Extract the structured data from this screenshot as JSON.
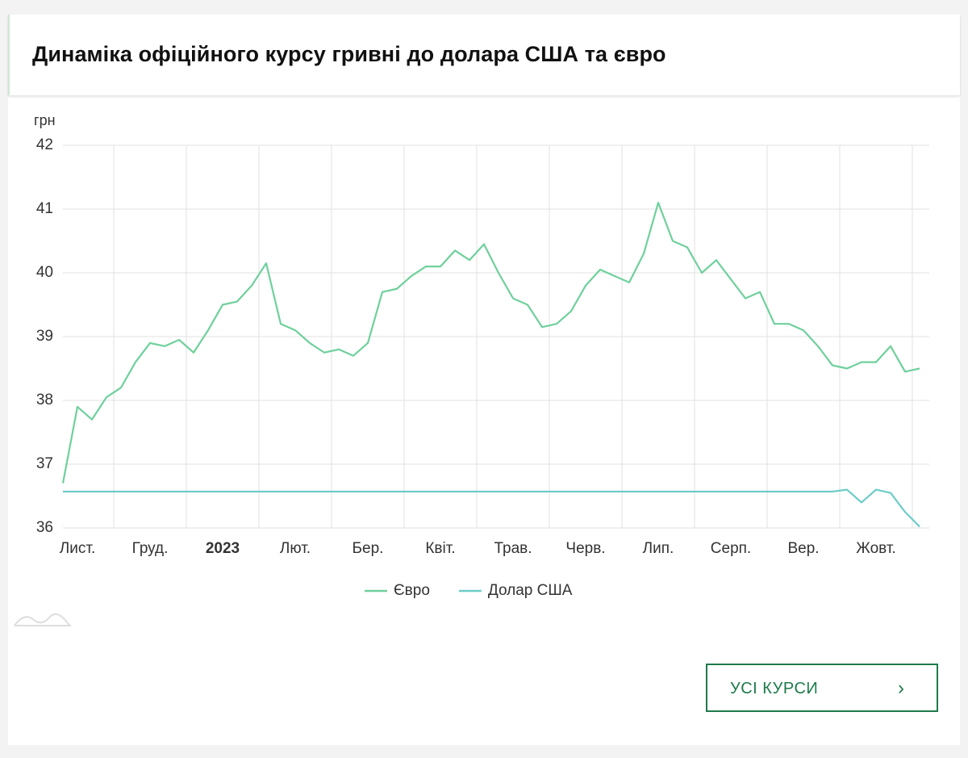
{
  "header": {
    "title": "Динаміка офіційного курсу гривні до долара США та євро"
  },
  "chart_data": {
    "type": "line",
    "y_unit_label": "грн",
    "categories": [
      null,
      "Лист.",
      null,
      null,
      null,
      null,
      "Груд.",
      null,
      null,
      null,
      null,
      "2023",
      null,
      null,
      null,
      null,
      "Лют.",
      null,
      null,
      null,
      null,
      "Бер.",
      null,
      null,
      null,
      null,
      "Квіт.",
      null,
      null,
      null,
      null,
      "Трав.",
      null,
      null,
      null,
      null,
      "Черв.",
      null,
      null,
      null,
      null,
      "Лип.",
      null,
      null,
      null,
      null,
      "Серп.",
      null,
      null,
      null,
      null,
      "Вер.",
      null,
      null,
      null,
      null,
      "Жовт.",
      null,
      null,
      null
    ],
    "series": [
      {
        "name": "Євро",
        "color": "#6fd09c",
        "values": [
          36.7,
          37.9,
          37.7,
          38.05,
          38.2,
          38.6,
          38.9,
          38.85,
          38.95,
          38.75,
          39.1,
          39.5,
          39.55,
          39.8,
          40.15,
          39.2,
          39.1,
          38.9,
          38.75,
          38.8,
          38.7,
          38.9,
          39.7,
          39.75,
          39.95,
          40.1,
          40.1,
          40.35,
          40.2,
          40.45,
          40.0,
          39.6,
          39.5,
          39.15,
          39.2,
          39.4,
          39.8,
          40.05,
          39.95,
          39.85,
          40.3,
          41.1,
          40.5,
          40.4,
          40.0,
          40.2,
          39.9,
          39.6,
          39.7,
          39.2,
          39.2,
          39.1,
          38.85,
          38.55,
          38.5,
          38.6,
          38.6,
          38.85,
          38.45,
          38.5
        ]
      },
      {
        "name": "Долар США",
        "color": "#6cccc8",
        "values": [
          36.57,
          36.57,
          36.57,
          36.57,
          36.57,
          36.57,
          36.57,
          36.57,
          36.57,
          36.57,
          36.57,
          36.57,
          36.57,
          36.57,
          36.57,
          36.57,
          36.57,
          36.57,
          36.57,
          36.57,
          36.57,
          36.57,
          36.57,
          36.57,
          36.57,
          36.57,
          36.57,
          36.57,
          36.57,
          36.57,
          36.57,
          36.57,
          36.57,
          36.57,
          36.57,
          36.57,
          36.57,
          36.57,
          36.57,
          36.57,
          36.57,
          36.57,
          36.57,
          36.57,
          36.57,
          36.57,
          36.57,
          36.57,
          36.57,
          36.57,
          36.57,
          36.57,
          36.57,
          36.57,
          36.6,
          36.4,
          36.6,
          36.55,
          36.25,
          36.02
        ]
      }
    ],
    "ylim": [
      36,
      42
    ],
    "yticks": [
      36,
      37,
      38,
      39,
      40,
      41,
      42
    ],
    "grid": true
  },
  "button": {
    "label": "УСІ КУРСИ"
  }
}
